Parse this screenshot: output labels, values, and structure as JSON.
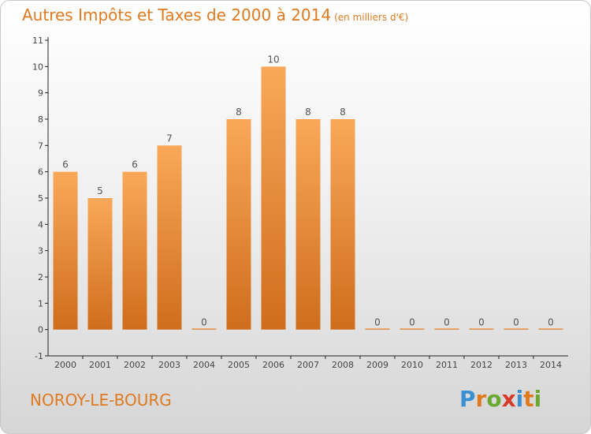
{
  "header": {
    "title": "Autres Impôts et Taxes de 2000 à 2014",
    "subtitle": "(en milliers d'€)"
  },
  "footer": {
    "commune": "NOROY-LE-BOURG",
    "brand_letters": [
      "P",
      "r",
      "o",
      "x",
      "i",
      "t",
      "i"
    ]
  },
  "colors": {
    "bar_top": "#f9a85a",
    "bar_bottom": "#cf6d1c",
    "title": "#e07a20",
    "brand": [
      "#3a8fd0",
      "#e07a20",
      "#6aa832",
      "#d83a2a",
      "#3a8fd0",
      "#e07a20",
      "#6aa832"
    ]
  },
  "chart_data": {
    "type": "bar",
    "title": "Autres Impôts et Taxes de 2000 à 2014",
    "subtitle": "(en milliers d'€)",
    "categories": [
      "2000",
      "2001",
      "2002",
      "2003",
      "2004",
      "2005",
      "2006",
      "2007",
      "2008",
      "2009",
      "2010",
      "2011",
      "2012",
      "2013",
      "2014"
    ],
    "values": [
      6,
      5,
      6,
      7,
      0,
      8,
      10,
      8,
      8,
      0,
      0,
      0,
      0,
      0,
      0
    ],
    "y_tick_labels": [
      "-1",
      "0",
      "1",
      "2",
      "3",
      "4",
      "5",
      "6",
      "7",
      "8",
      "9",
      "10",
      "11"
    ],
    "ylim": [
      -1,
      11
    ],
    "grid": false,
    "legend": "none"
  }
}
